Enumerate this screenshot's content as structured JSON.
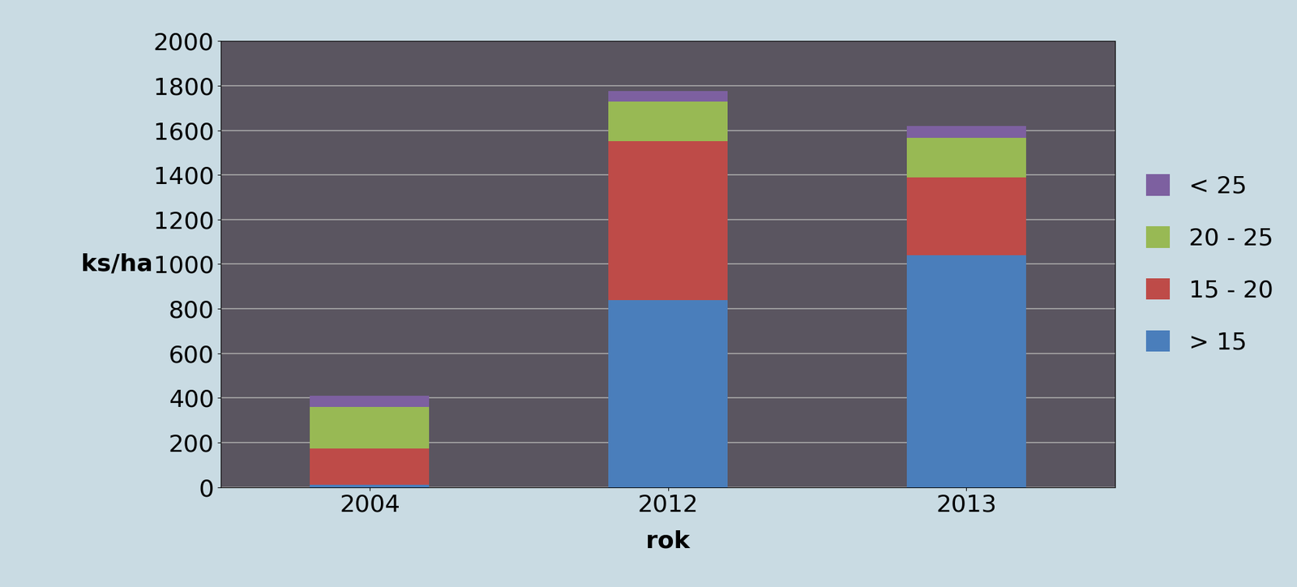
{
  "chart_data": {
    "type": "bar",
    "stacked": true,
    "grid": true,
    "legend": "right",
    "x_label": "rok",
    "y_label": "ks/ha",
    "categories": [
      "2004",
      "2012",
      "2013"
    ],
    "series": [
      {
        "name": "> 15",
        "color": "#4a7ebb",
        "values": [
          10,
          840,
          1040
        ]
      },
      {
        "name": "15 - 20",
        "color": "#be4b48",
        "values": [
          165,
          710,
          350
        ]
      },
      {
        "name": "20 - 25",
        "color": "#98b954",
        "values": [
          185,
          180,
          175
        ]
      },
      {
        "name": "< 25",
        "color": "#7d60a0",
        "values": [
          50,
          45,
          55
        ]
      }
    ],
    "ylim": [
      0,
      2000
    ],
    "yticks": [
      0,
      200,
      400,
      600,
      800,
      1000,
      1200,
      1400,
      1600,
      1800,
      2000
    ]
  }
}
